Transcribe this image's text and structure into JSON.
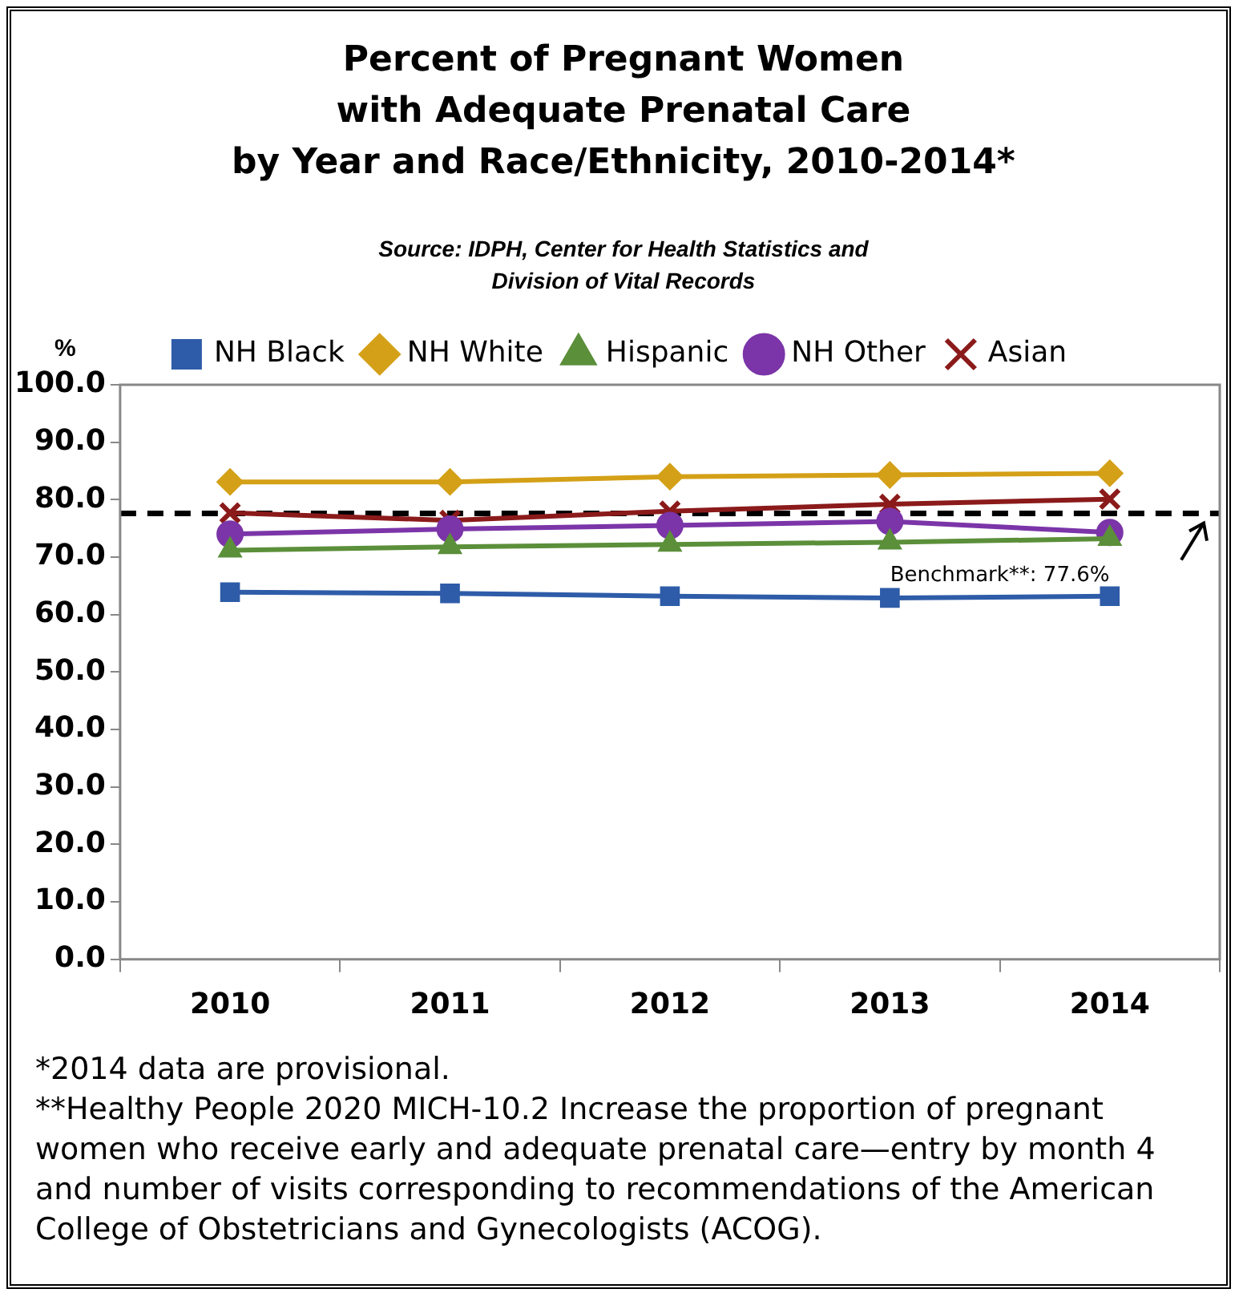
{
  "chart_data": {
    "type": "line",
    "title": "Percent of Pregnant Women\nwith Adequate Prenatal Care\nby Year and Race/Ethnicity, 2010-2014*",
    "subtitle": "Source: IDPH, Center for Health Statistics and\nDivision of Vital Records",
    "ylabel": "%",
    "categories": [
      "2010",
      "2011",
      "2012",
      "2013",
      "2014"
    ],
    "series": [
      {
        "name": "NH Black",
        "color": "#2e5ca8",
        "marker": "square",
        "values": [
          63.9,
          63.7,
          63.2,
          62.9,
          63.2
        ]
      },
      {
        "name": "NH White",
        "color": "#d4a017",
        "marker": "diamond",
        "values": [
          83.1,
          83.1,
          84.0,
          84.3,
          84.6
        ]
      },
      {
        "name": "Hispanic",
        "color": "#5b8f3a",
        "marker": "triangle",
        "values": [
          71.2,
          71.8,
          72.2,
          72.6,
          73.2
        ]
      },
      {
        "name": "NH Other",
        "color": "#7b35a8",
        "marker": "circle",
        "values": [
          74.0,
          74.9,
          75.5,
          76.2,
          74.3
        ]
      },
      {
        "name": "Asian",
        "color": "#8b1a1a",
        "marker": "cross",
        "values": [
          77.7,
          76.4,
          78.0,
          79.2,
          80.1
        ]
      }
    ],
    "ylim": [
      0,
      100
    ],
    "yticks": [
      {
        "value": 0,
        "label": "0.0"
      },
      {
        "value": 10,
        "label": "10.0"
      },
      {
        "value": 20,
        "label": "20.0"
      },
      {
        "value": 30,
        "label": "30.0"
      },
      {
        "value": 40,
        "label": "40.0"
      },
      {
        "value": 50,
        "label": "50.0"
      },
      {
        "value": 60,
        "label": "60.0"
      },
      {
        "value": 70,
        "label": "70.0"
      },
      {
        "value": 80,
        "label": "80.0"
      },
      {
        "value": 90,
        "label": "90.0"
      },
      {
        "value": 100,
        "label": "100.0"
      }
    ],
    "ref_lines": [
      {
        "axis": "y",
        "value": 77.6,
        "label": "Benchmark**: 77.6%",
        "color": "#000000",
        "line_style": "dashed"
      }
    ],
    "annotations": [
      "*2014 data are provisional.",
      "**Healthy People 2020 MICH-10.2 Increase the proportion of pregnant women who receive early and adequate prenatal care—entry by month 4 and number of visits corresponding to recommendations of the American College of Obstetricians and Gynecologists (ACOG)."
    ],
    "grid": false,
    "legend": "top"
  }
}
